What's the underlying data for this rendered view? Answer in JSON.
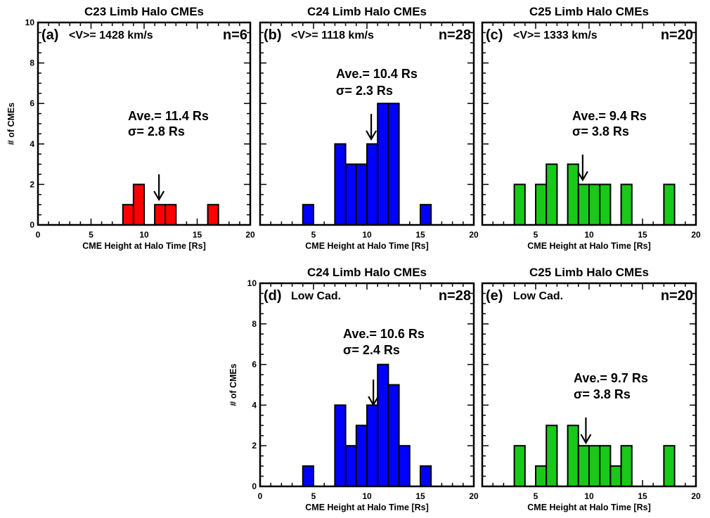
{
  "chart_data": [
    {
      "id": "a",
      "type": "bar",
      "title": "C23 Limb Halo CMEs",
      "panel_label": "(a)",
      "velocity_label": "<V>= 1428 km/s",
      "n_label": "n=6",
      "ave_label": "Ave.= 11.4 Rs",
      "sigma_label": "σ=  2.8 Rs",
      "arrow_x": 11.4,
      "xlabel": "CME Height at Halo Time [Rs]",
      "ylabel": "# of CMEs",
      "xlim": [
        0,
        20
      ],
      "ylim": [
        0,
        10
      ],
      "color": "#ff0000",
      "bin_width": 1,
      "x": [
        8,
        9,
        11,
        12,
        16
      ],
      "values": [
        1,
        2,
        1,
        1,
        1
      ],
      "xticks": [
        "0",
        "5",
        "10",
        "15",
        "20"
      ],
      "yticks": [
        "0",
        "2",
        "4",
        "6",
        "8",
        "10"
      ]
    },
    {
      "id": "b",
      "type": "bar",
      "title": "C24 Limb Halo CMEs",
      "panel_label": "(b)",
      "velocity_label": "<V>= 1118 km/s",
      "n_label": "n=28",
      "ave_label": "Ave.= 10.4 Rs",
      "sigma_label": "σ=  2.3 Rs",
      "arrow_x": 10.4,
      "xlabel": "CME Height at Halo Time [Rs]",
      "ylabel": "",
      "xlim": [
        0,
        20
      ],
      "ylim": [
        0,
        10
      ],
      "color": "#0000ff",
      "bin_width": 1,
      "x": [
        4,
        7,
        8,
        9,
        10,
        11,
        12,
        15
      ],
      "values": [
        1,
        4,
        3,
        3,
        4,
        6,
        6,
        1
      ],
      "xticks": [
        "",
        "5",
        "10",
        "15",
        "20"
      ],
      "yticks": [
        "",
        "",
        "",
        "",
        "",
        ""
      ]
    },
    {
      "id": "c",
      "type": "bar",
      "title": "C25 Limb Halo CMEs",
      "panel_label": "(c)",
      "velocity_label": "<V>= 1333 km/s",
      "n_label": "n=20",
      "ave_label": "Ave.= 9.4 Rs",
      "sigma_label": "σ= 3.8 Rs",
      "arrow_x": 9.4,
      "xlabel": "CME Height at Halo Time [Rs]",
      "ylabel": "",
      "xlim": [
        0,
        20
      ],
      "ylim": [
        0,
        10
      ],
      "color": "#19c919",
      "bin_width": 1,
      "x": [
        3,
        5,
        6,
        8,
        9,
        10,
        11,
        13,
        17
      ],
      "values": [
        2,
        2,
        3,
        3,
        2,
        2,
        2,
        2,
        2
      ],
      "xticks": [
        "",
        "5",
        "10",
        "15",
        "20"
      ],
      "yticks": [
        "",
        "",
        "",
        "",
        "",
        ""
      ]
    },
    {
      "id": "d",
      "type": "bar",
      "title": "C24 Limb Halo CMEs",
      "panel_label": "(d)",
      "velocity_label": "Low Cad.",
      "n_label": "n=28",
      "ave_label": "Ave.= 10.6 Rs",
      "sigma_label": "σ=  2.4 Rs",
      "arrow_x": 10.6,
      "xlabel": "CME Height at Halo Time [Rs]",
      "ylabel": "# of CMEs",
      "xlim": [
        0,
        20
      ],
      "ylim": [
        0,
        10
      ],
      "color": "#0000ff",
      "bin_width": 1,
      "x": [
        4,
        7,
        8,
        9,
        10,
        11,
        12,
        13,
        15
      ],
      "values": [
        1,
        4,
        2,
        3,
        4,
        6,
        5,
        2,
        1
      ],
      "xticks": [
        "0",
        "5",
        "10",
        "15",
        "20"
      ],
      "yticks": [
        "0",
        "2",
        "4",
        "6",
        "8",
        "10"
      ]
    },
    {
      "id": "e",
      "type": "bar",
      "title": "C25 Limb Halo CMEs",
      "panel_label": "(e)",
      "velocity_label": "Low Cad.",
      "n_label": "n=20",
      "ave_label": "Ave.= 9.7 Rs",
      "sigma_label": "σ= 3.8 Rs",
      "arrow_x": 9.7,
      "xlabel": "CME Height at Halo Time [Rs]",
      "ylabel": "",
      "xlim": [
        0,
        20
      ],
      "ylim": [
        0,
        10
      ],
      "color": "#19c919",
      "bin_width": 1,
      "x": [
        3,
        5,
        6,
        8,
        9,
        10,
        11,
        12,
        13,
        17
      ],
      "values": [
        2,
        1,
        3,
        3,
        2,
        2,
        2,
        1,
        2,
        2
      ],
      "xticks": [
        "",
        "5",
        "10",
        "15",
        "20"
      ],
      "yticks": [
        "",
        "",
        "",
        "",
        "",
        ""
      ]
    }
  ]
}
